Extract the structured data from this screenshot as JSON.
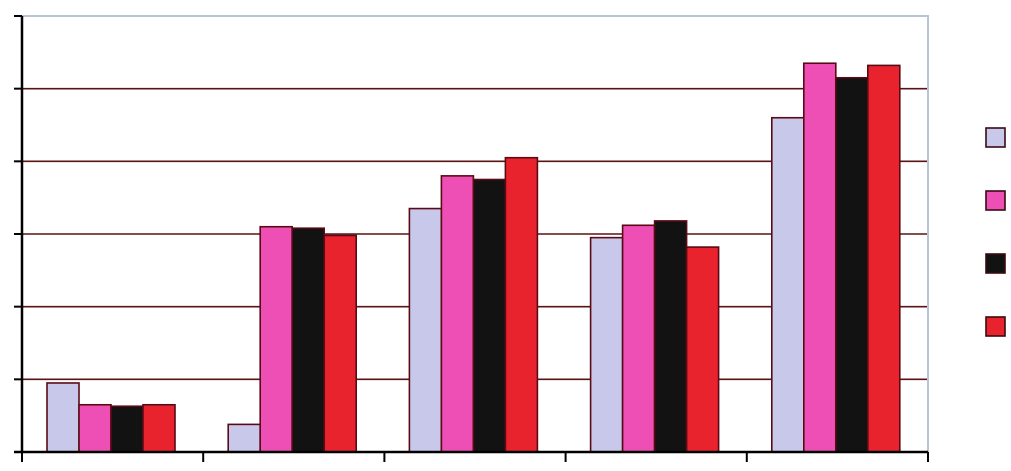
{
  "chart_data": {
    "type": "bar",
    "title": "",
    "xlabel": "",
    "ylabel": "",
    "categories": [
      "",
      "",
      "",
      "",
      ""
    ],
    "ylim": [
      0,
      6
    ],
    "grid": true,
    "legend_position": "right",
    "series": [
      {
        "color": "#c8c8ea",
        "values": [
          0.95,
          0.38,
          3.35,
          2.95,
          4.6
        ]
      },
      {
        "color": "#ee4fb4",
        "values": [
          0.65,
          3.1,
          3.8,
          3.12,
          5.35
        ]
      },
      {
        "color": "#121212",
        "values": [
          0.63,
          3.08,
          3.75,
          3.18,
          5.15
        ]
      },
      {
        "color": "#e8232e",
        "values": [
          0.65,
          2.98,
          4.05,
          2.82,
          5.32
        ]
      }
    ]
  }
}
